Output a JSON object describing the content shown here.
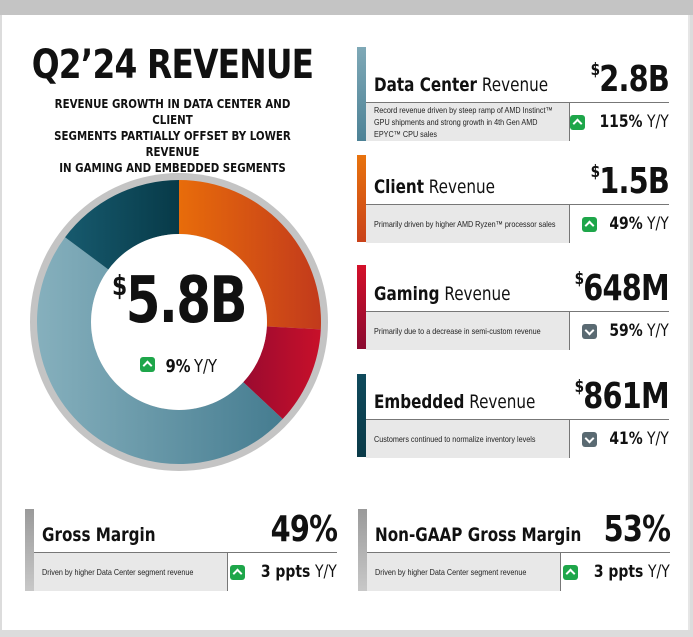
{
  "header": {
    "title": "Q2’24 REVENUE",
    "subtitle_lines": [
      "REVENUE GROWTH IN DATA CENTER AND CLIENT",
      "SEGMENTS PARTIALLY OFFSET BY LOWER REVENUE",
      "IN GAMING AND EMBEDDED SEGMENTS"
    ]
  },
  "total": {
    "currency": "$",
    "value": "5.8B",
    "change_direction": "up",
    "change": "9%",
    "change_suffix": "Y/Y"
  },
  "segments": [
    {
      "name_bold": "Data Center",
      "name_rest": " Revenue",
      "currency": "$",
      "value": "2.8B",
      "description": "Record revenue driven by steep ramp of AMD Instinct™ GPU shipments and strong growth in 4th Gen AMD EPYC™ CPU sales",
      "change_direction": "up",
      "change": "115%",
      "change_suffix": "Y/Y",
      "color": "#5b8ea0"
    },
    {
      "name_bold": "Client",
      "name_rest": " Revenue",
      "currency": "$",
      "value": "1.5B",
      "description": "Primarily driven by higher AMD Ryzen™ processor sales",
      "change_direction": "up",
      "change": "49%",
      "change_suffix": "Y/Y",
      "color": "#e06a12"
    },
    {
      "name_bold": "Gaming",
      "name_rest": " Revenue",
      "currency": "$",
      "value": "648M",
      "description": "Primarily due to a decrease in semi-custom revenue",
      "change_direction": "down",
      "change": "59%",
      "change_suffix": "Y/Y",
      "color": "#c0102e"
    },
    {
      "name_bold": "Embedded",
      "name_rest": " Revenue",
      "currency": "$",
      "value": "861M",
      "description": "Customers continued to normalize inventory levels",
      "change_direction": "down",
      "change": "41%",
      "change_suffix": "Y/Y",
      "color": "#0f4a5c"
    }
  ],
  "margins": [
    {
      "label": "Gross Margin",
      "value": "49%",
      "description": "Driven by higher Data Center segment revenue",
      "change_direction": "up",
      "change": "3 ppts",
      "change_suffix": "Y/Y"
    },
    {
      "label": "Non-GAAP Gross Margin",
      "value": "53%",
      "description": "Driven by higher Data Center segment revenue",
      "change_direction": "up",
      "change": "3 ppts",
      "change_suffix": "Y/Y"
    }
  ],
  "chart_data": {
    "type": "pie",
    "title": "Q2’24 Revenue",
    "center_label": "$5.8B",
    "units": "USD billions",
    "order": "clockwise from top",
    "categories": [
      "Client",
      "Gaming",
      "Data Center",
      "Embedded"
    ],
    "values": [
      1.5,
      0.648,
      2.8,
      0.861
    ],
    "colors": [
      "#e06a12",
      "#b5102c",
      "#6a9bac",
      "#0f4a5c"
    ]
  }
}
